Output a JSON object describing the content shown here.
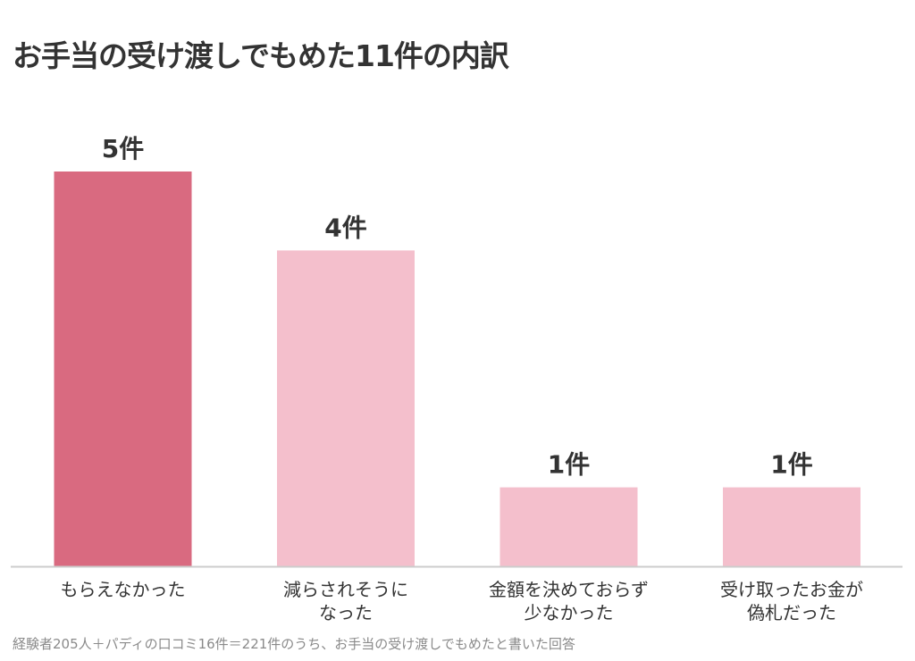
{
  "title": "お手当の受け渡しでもめた11件の内訳",
  "footnote": "経験者205人＋パディの口コミ16件＝221件のうち、お手当の受け渡しでもめたと書いた回答",
  "colors": {
    "highlight": "#d96a80",
    "normal": "#f4bfcc",
    "baseline": "#cccccc",
    "text": "#333333",
    "footnote": "#8a8a8a"
  },
  "chart_data": {
    "type": "bar",
    "categories": [
      [
        "もらえなかった"
      ],
      [
        "減らされそうに",
        "なった"
      ],
      [
        "金額を決めておらず",
        "少なかった"
      ],
      [
        "受け取ったお金が",
        "偽札だった"
      ]
    ],
    "values": [
      5,
      4,
      1,
      1
    ],
    "value_labels": [
      "5件",
      "4件",
      "1件",
      "1件"
    ],
    "highlight_index": 0,
    "ylim": [
      0,
      5
    ],
    "grid": false,
    "legend": "none"
  }
}
